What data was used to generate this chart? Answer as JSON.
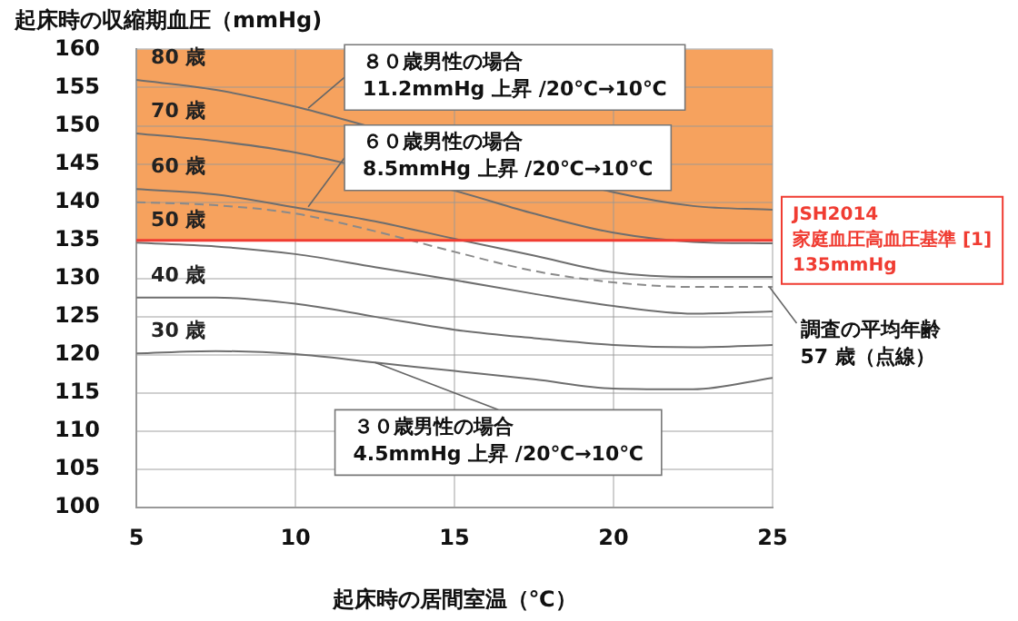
{
  "chart_data": {
    "type": "line",
    "xlabel": "起床時の居間室温（℃）",
    "ylabel": "起床時の収縮期血圧（mmHg)",
    "x": [
      5,
      7.5,
      10,
      12.5,
      15,
      17.5,
      20,
      22.5,
      25
    ],
    "series": [
      {
        "name": "80 歳",
        "color": "#6e6e6e",
        "values": [
          156,
          154.7,
          152.5,
          149.7,
          null,
          null,
          141.3,
          139.5,
          139
        ]
      },
      {
        "name": "70 歳",
        "color": "#6e6e6e",
        "values": [
          149,
          148,
          146.5,
          null,
          141.5,
          138.5,
          136,
          134.8,
          134.6
        ]
      },
      {
        "name": "60 歳",
        "color": "#6e6e6e",
        "values": [
          141.7,
          141,
          139.3,
          137.5,
          135.2,
          133,
          130.8,
          130.2,
          130.2
        ]
      },
      {
        "color": "#8a8a8a",
        "line_style": "dashed",
        "values": [
          140,
          139.6,
          138.5,
          136.2,
          133.5,
          131,
          129.5,
          128.9,
          128.9
        ]
      },
      {
        "name": "50 歳",
        "color": "#6e6e6e",
        "values": [
          134.7,
          134.2,
          133.2,
          131.5,
          129.8,
          128,
          126.4,
          125.4,
          125.7
        ]
      },
      {
        "name": "40 歳",
        "color": "#6e6e6e",
        "values": [
          127.5,
          127.5,
          126.7,
          125,
          123.3,
          122.2,
          121.3,
          121,
          121.3
        ]
      },
      {
        "name": "30 歳",
        "color": "#6e6e6e",
        "values": [
          120.2,
          120.5,
          120.1,
          119,
          117.9,
          116.8,
          115.6,
          115.5,
          117
        ]
      }
    ],
    "xlim": [
      5,
      25
    ],
    "xticks": [
      5,
      10,
      15,
      20,
      25
    ],
    "ylim": [
      100,
      160
    ],
    "yticks": [
      100,
      105,
      110,
      115,
      120,
      125,
      130,
      135,
      140,
      145,
      150,
      155,
      160
    ],
    "grid": true,
    "legend": false,
    "marker": "none",
    "line_style": "solid",
    "bands": [
      {
        "axis": "y",
        "from": 135,
        "to": 160,
        "color": "#f6a25e"
      }
    ],
    "ref_lines": [
      {
        "axis": "y",
        "value": 135,
        "label": "JSH2014\n家庭血圧高血圧基準 [1]\n135mmHg",
        "color": "#f03c32"
      }
    ],
    "annotations": [
      {
        "text": "８０歳男性の場合\n11.2mmHg 上昇 /20℃→10℃",
        "x": 10.4,
        "y": 152.3
      },
      {
        "text": "６０歳男性の場合\n8.5mmHg 上昇 /20℃→10℃",
        "x": 10.4,
        "y": 139.4
      },
      {
        "text": "３０歳男性の場合\n4.5mmHg 上昇 /20℃→10℃",
        "x": 12.5,
        "y": 119
      },
      {
        "text": "調査の平均年齢\n57 歳（点線）",
        "x": 24.9,
        "y": 128.9
      }
    ]
  }
}
